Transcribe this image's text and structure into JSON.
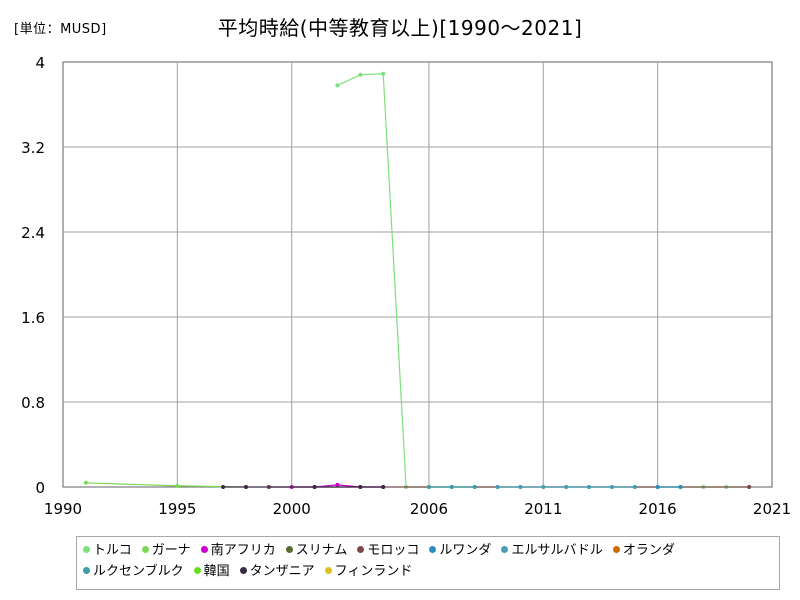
{
  "header": {
    "unit_label": "[単位：MUSD]",
    "title": "平均時給(中等教育以上)[1990～2021]"
  },
  "chart_data": {
    "type": "line",
    "title": "平均時給(中等教育以上)[1990～2021]",
    "xlabel": "",
    "ylabel": "",
    "xlim": [
      1990,
      2021
    ],
    "ylim": [
      0,
      4
    ],
    "xticks": [
      1990,
      1995,
      2000,
      2006,
      2011,
      2016,
      2021
    ],
    "yticks": [
      0,
      0.8,
      1.6,
      2.4,
      3.2,
      4
    ],
    "grid": true,
    "legend_position": "bottom",
    "series": [
      {
        "name": "トルコ",
        "color": "#7de07d",
        "points": [
          [
            2002,
            3.78
          ],
          [
            2003,
            3.88
          ],
          [
            2004,
            3.89
          ],
          [
            2005,
            0.0
          ],
          [
            2006,
            0.0
          ],
          [
            2007,
            0.0
          ],
          [
            2008,
            0.0
          ],
          [
            2009,
            0.0
          ],
          [
            2010,
            0.0
          ],
          [
            2011,
            0.0
          ],
          [
            2012,
            0.0
          ],
          [
            2013,
            0.0
          ],
          [
            2014,
            0.0
          ],
          [
            2015,
            0.0
          ],
          [
            2016,
            0.0
          ],
          [
            2017,
            0.0
          ],
          [
            2018,
            0.0
          ],
          [
            2019,
            0.0
          ],
          [
            2020,
            0.0
          ]
        ]
      },
      {
        "name": "ガーナ",
        "color": "#7dd855",
        "points": [
          [
            1991,
            0.04
          ],
          [
            1995,
            0.01
          ],
          [
            1998,
            0.0
          ]
        ]
      },
      {
        "name": "南アフリカ",
        "color": "#cc00cc",
        "points": [
          [
            2000,
            0.0
          ],
          [
            2001,
            0.0
          ],
          [
            2002,
            0.02
          ],
          [
            2003,
            0.0
          ],
          [
            2004,
            0.0
          ]
        ]
      },
      {
        "name": "スリナム",
        "color": "#556b2f",
        "points": [
          [
            1999,
            0.0
          ]
        ]
      },
      {
        "name": "モロッコ",
        "color": "#7a4a4a",
        "points": [
          [
            1999,
            0.0
          ],
          [
            2020,
            0.0
          ]
        ]
      },
      {
        "name": "ルワンダ",
        "color": "#2a8cc0",
        "points": [
          [
            2016,
            0.0
          ],
          [
            2017,
            0.0
          ]
        ]
      },
      {
        "name": "エルサルバドル",
        "color": "#4a9ab8",
        "points": [
          [
            2009,
            0.0
          ],
          [
            2010,
            0.0
          ],
          [
            2011,
            0.0
          ],
          [
            2012,
            0.0
          ],
          [
            2013,
            0.0
          ],
          [
            2014,
            0.0
          ],
          [
            2015,
            0.0
          ]
        ]
      },
      {
        "name": "オランダ",
        "color": "#cc6a00",
        "points": []
      },
      {
        "name": "ルクセンブルク",
        "color": "#3c9ca8",
        "points": [
          [
            2006,
            0.0
          ],
          [
            2007,
            0.0
          ],
          [
            2008,
            0.0
          ]
        ]
      },
      {
        "name": "韓国",
        "color": "#66dd22",
        "points": []
      },
      {
        "name": "タンザニア",
        "color": "#3a2a44",
        "points": [
          [
            1997,
            0.0
          ],
          [
            1998,
            0.0
          ],
          [
            2001,
            0.0
          ],
          [
            2003,
            0.0
          ],
          [
            2004,
            0.0
          ]
        ]
      },
      {
        "name": "フィンランド",
        "color": "#e0c020",
        "points": []
      }
    ]
  }
}
